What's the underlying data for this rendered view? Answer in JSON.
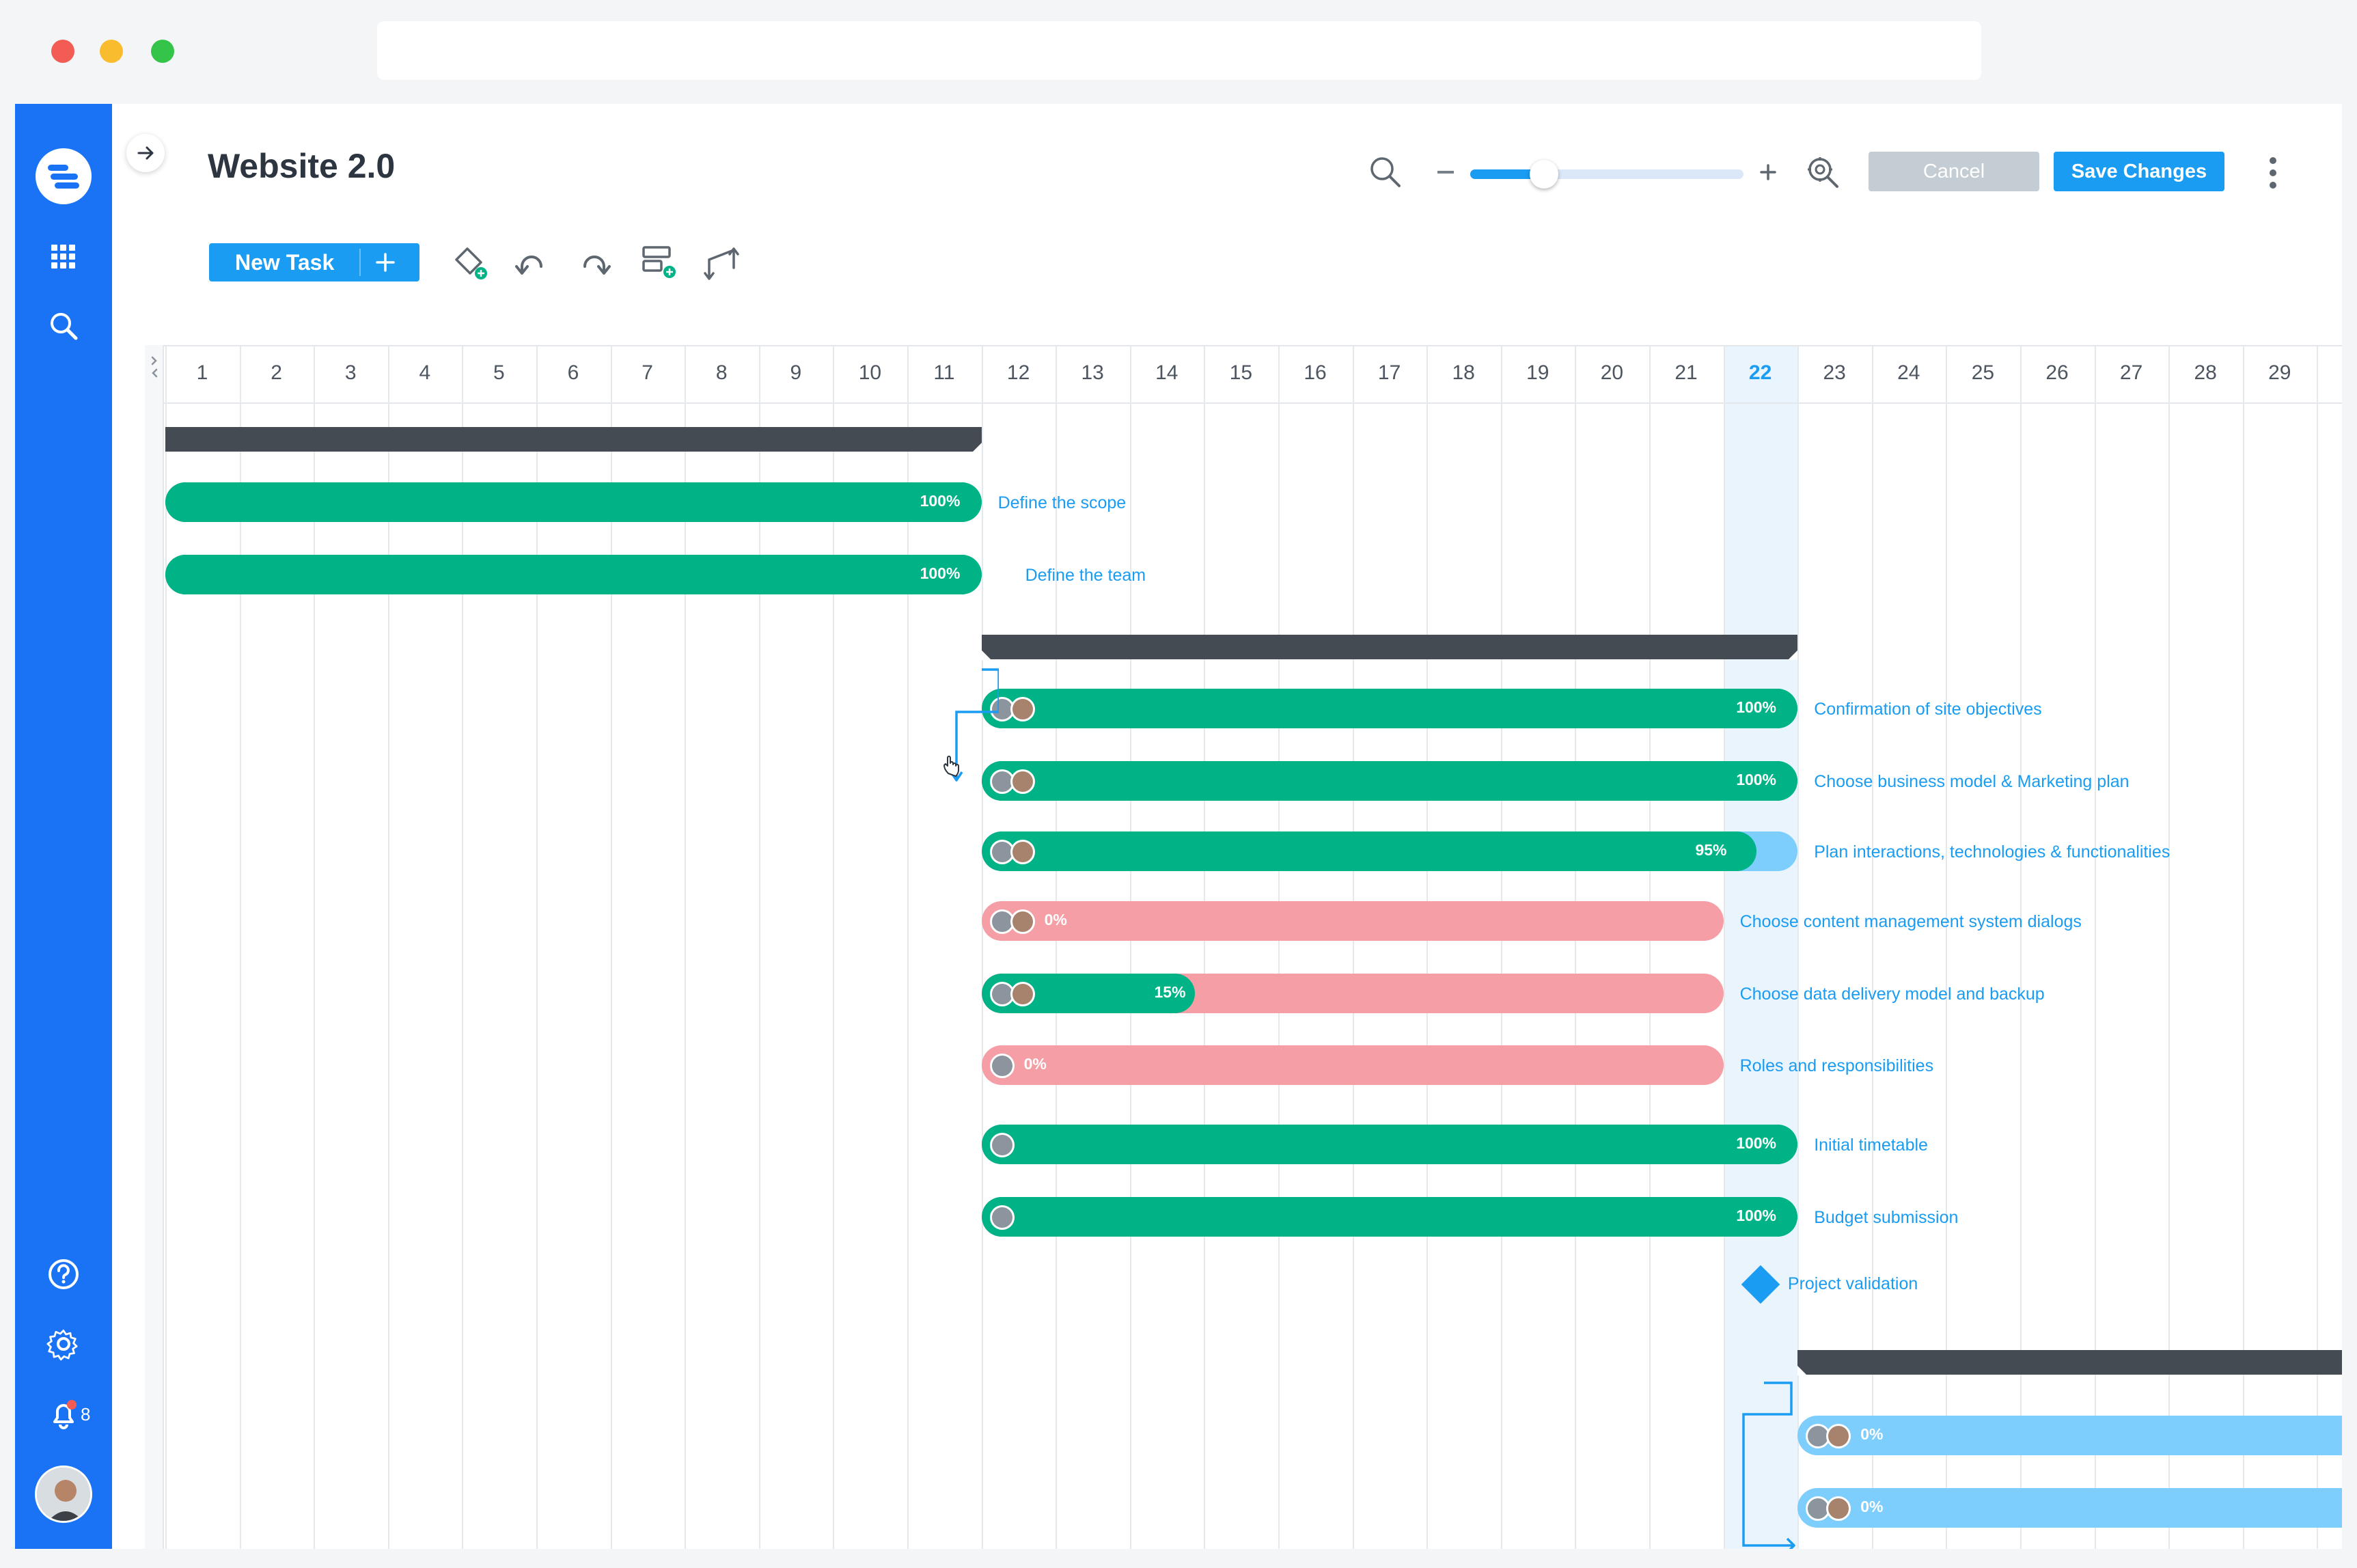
{
  "header": {
    "title": "Website 2.0",
    "cancel_label": "Cancel",
    "save_label": "Save Changes",
    "new_task_label": "New Task"
  },
  "zoom": {
    "level": 0.27
  },
  "sidebar": {
    "notification_count": "8"
  },
  "timeline": {
    "days": [
      "1",
      "2",
      "3",
      "4",
      "5",
      "6",
      "7",
      "8",
      "9",
      "10",
      "11",
      "12",
      "13",
      "14",
      "15",
      "16",
      "17",
      "18",
      "19",
      "20",
      "21",
      "22",
      "23",
      "24",
      "25",
      "26",
      "27",
      "28",
      "29"
    ],
    "today": "22",
    "groups": [
      {
        "start": 1,
        "end": 11
      },
      {
        "start": 12,
        "end": 22
      },
      {
        "start": 23,
        "end": 30
      }
    ],
    "tasks": [
      {
        "label": "Define the scope",
        "percent": "100%",
        "progress": 1.0,
        "start": 1,
        "end": 11,
        "status": "done",
        "avatars": 0
      },
      {
        "label": "Define the team",
        "percent": "100%",
        "progress": 1.0,
        "start": 1,
        "end": 11,
        "status": "done",
        "avatars": 0
      },
      {
        "label": "Confirmation of site objectives",
        "percent": "100%",
        "progress": 1.0,
        "start": 12,
        "end": 22,
        "status": "done",
        "avatars": 2
      },
      {
        "label": "Choose business model & Marketing plan",
        "percent": "100%",
        "progress": 1.0,
        "start": 12,
        "end": 22,
        "status": "done",
        "avatars": 2
      },
      {
        "label": "Plan interactions, technologies & functionalities",
        "percent": "95%",
        "progress": 0.95,
        "start": 12,
        "end": 22,
        "status": "in-progress",
        "avatars": 2
      },
      {
        "label": "Choose content management system dialogs",
        "percent": "0%",
        "progress": 0.0,
        "start": 12,
        "end": 21,
        "status": "late",
        "avatars": 2
      },
      {
        "label": "Choose data delivery model and backup",
        "percent": "15%",
        "progress": 0.15,
        "start": 12,
        "end": 21,
        "status": "late",
        "avatars": 2
      },
      {
        "label": "Roles and responsibilities",
        "percent": "0%",
        "progress": 0.0,
        "start": 12,
        "end": 21,
        "status": "late",
        "avatars": 1
      },
      {
        "label": "Initial timetable",
        "percent": "100%",
        "progress": 1.0,
        "start": 12,
        "end": 22,
        "status": "done",
        "avatars": 1
      },
      {
        "label": "Budget submission",
        "percent": "100%",
        "progress": 1.0,
        "start": 12,
        "end": 22,
        "status": "done",
        "avatars": 1
      },
      {
        "label": "Project validation",
        "status": "milestone",
        "start": 22
      },
      {
        "label": "",
        "percent": "0%",
        "progress": 0.0,
        "start": 23,
        "end": 30,
        "status": "planned",
        "avatars": 2
      },
      {
        "label": "",
        "percent": "0%",
        "progress": 0.0,
        "start": 23,
        "end": 30,
        "status": "planned",
        "avatars": 2
      }
    ]
  },
  "colors": {
    "accent": "#1a9cf2",
    "sidebar": "#1a73f5",
    "done": "#00b386",
    "late": "#f59ea5",
    "planned": "#7dcdfd",
    "group": "#444b53",
    "today_column": "#e9f4fd"
  }
}
